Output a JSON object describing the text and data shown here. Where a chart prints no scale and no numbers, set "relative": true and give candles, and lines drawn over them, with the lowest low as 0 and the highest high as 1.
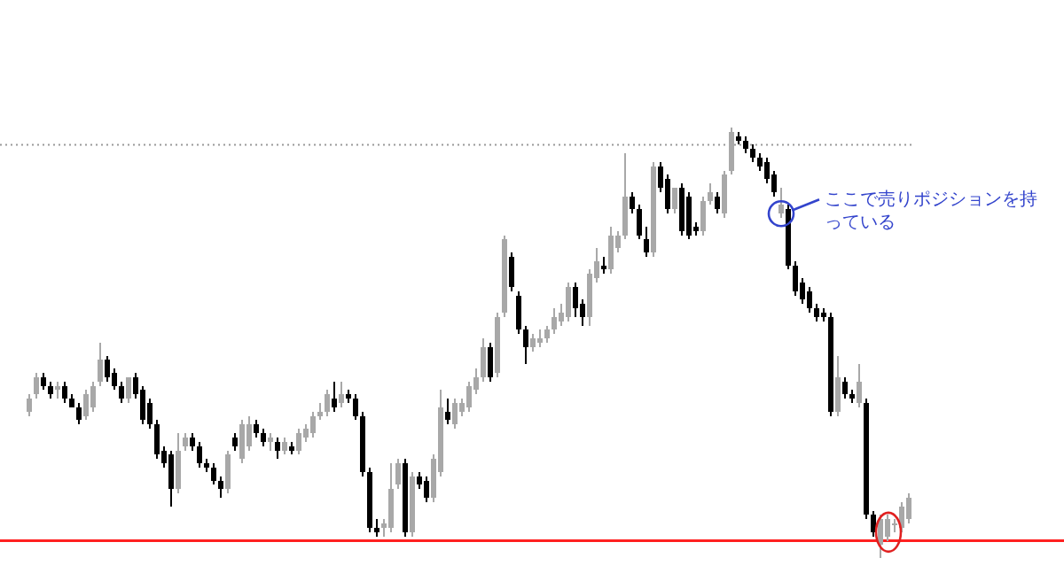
{
  "chart_data": {
    "type": "candlestick",
    "relative": true,
    "categories": [
      null,
      null,
      null,
      null,
      null,
      null,
      null,
      null,
      null,
      null,
      null,
      null,
      null,
      null,
      null,
      null,
      null,
      null,
      null,
      null,
      null,
      null,
      null,
      null,
      null,
      null,
      null,
      null,
      null,
      null,
      null,
      null,
      null,
      null,
      null,
      null,
      null,
      null,
      null,
      null,
      null,
      null,
      null,
      null,
      null,
      null,
      null,
      null,
      null,
      null,
      null,
      null,
      null,
      null,
      null,
      null,
      null,
      null,
      null,
      null,
      null,
      null,
      null,
      null,
      null,
      null,
      null,
      null,
      null,
      null,
      null,
      null,
      null,
      null,
      null,
      null,
      null,
      null,
      null,
      null,
      null,
      null,
      null,
      null,
      null,
      null,
      null,
      null,
      null,
      null,
      null,
      null,
      null,
      null,
      null,
      null,
      null,
      null,
      null,
      null,
      null,
      null,
      null,
      null,
      null,
      null,
      null,
      null,
      null,
      null,
      null,
      null,
      null,
      null,
      null,
      null,
      null,
      null,
      null,
      null,
      null,
      null,
      null,
      null,
      null
    ],
    "ohlc": [
      [
        0.34,
        0.38,
        0.33,
        0.37
      ],
      [
        0.38,
        0.43,
        0.37,
        0.42
      ],
      [
        0.42,
        0.43,
        0.39,
        0.4
      ],
      [
        0.4,
        0.41,
        0.37,
        0.38
      ],
      [
        0.39,
        0.41,
        0.37,
        0.4
      ],
      [
        0.4,
        0.41,
        0.36,
        0.37
      ],
      [
        0.37,
        0.38,
        0.35,
        0.35
      ],
      [
        0.35,
        0.36,
        0.31,
        0.32
      ],
      [
        0.33,
        0.39,
        0.32,
        0.38
      ],
      [
        0.35,
        0.41,
        0.34,
        0.4
      ],
      [
        0.41,
        0.5,
        0.4,
        0.46
      ],
      [
        0.46,
        0.47,
        0.41,
        0.42
      ],
      [
        0.43,
        0.44,
        0.39,
        0.4
      ],
      [
        0.4,
        0.41,
        0.36,
        0.37
      ],
      [
        0.37,
        0.42,
        0.36,
        0.42
      ],
      [
        0.42,
        0.43,
        0.37,
        0.38
      ],
      [
        0.39,
        0.4,
        0.31,
        0.32
      ],
      [
        0.36,
        0.37,
        0.3,
        0.31
      ],
      [
        0.31,
        0.32,
        0.23,
        0.24
      ],
      [
        0.25,
        0.26,
        0.21,
        0.22
      ],
      [
        0.24,
        0.25,
        0.12,
        0.16
      ],
      [
        0.16,
        0.29,
        0.15,
        0.25
      ],
      [
        0.26,
        0.29,
        0.25,
        0.28
      ],
      [
        0.28,
        0.29,
        0.25,
        0.26
      ],
      [
        0.26,
        0.27,
        0.21,
        0.22
      ],
      [
        0.22,
        0.23,
        0.2,
        0.21
      ],
      [
        0.21,
        0.22,
        0.17,
        0.18
      ],
      [
        0.18,
        0.19,
        0.14,
        0.16
      ],
      [
        0.16,
        0.25,
        0.15,
        0.24
      ],
      [
        0.28,
        0.29,
        0.25,
        0.26
      ],
      [
        0.23,
        0.32,
        0.22,
        0.31
      ],
      [
        0.26,
        0.33,
        0.25,
        0.31
      ],
      [
        0.31,
        0.32,
        0.28,
        0.29
      ],
      [
        0.29,
        0.3,
        0.26,
        0.27
      ],
      [
        0.27,
        0.29,
        0.25,
        0.28
      ],
      [
        0.27,
        0.28,
        0.23,
        0.25
      ],
      [
        0.25,
        0.28,
        0.24,
        0.27
      ],
      [
        0.26,
        0.27,
        0.24,
        0.25
      ],
      [
        0.25,
        0.3,
        0.24,
        0.29
      ],
      [
        0.28,
        0.31,
        0.27,
        0.3
      ],
      [
        0.29,
        0.34,
        0.28,
        0.33
      ],
      [
        0.33,
        0.36,
        0.32,
        0.34
      ],
      [
        0.34,
        0.39,
        0.33,
        0.38
      ],
      [
        0.37,
        0.41,
        0.34,
        0.35
      ],
      [
        0.36,
        0.41,
        0.35,
        0.38
      ],
      [
        0.38,
        0.39,
        0.36,
        0.37
      ],
      [
        0.37,
        0.38,
        0.32,
        0.33
      ],
      [
        0.33,
        0.34,
        0.19,
        0.2
      ],
      [
        0.2,
        0.21,
        0.06,
        0.07
      ],
      [
        0.07,
        0.09,
        0.05,
        0.06
      ],
      [
        0.07,
        0.09,
        0.05,
        0.08
      ],
      [
        0.07,
        0.22,
        0.06,
        0.16
      ],
      [
        0.17,
        0.23,
        0.16,
        0.22
      ],
      [
        0.22,
        0.23,
        0.05,
        0.06
      ],
      [
        0.06,
        0.2,
        0.05,
        0.19
      ],
      [
        0.19,
        0.2,
        0.16,
        0.17
      ],
      [
        0.18,
        0.19,
        0.13,
        0.14
      ],
      [
        0.14,
        0.24,
        0.13,
        0.23
      ],
      [
        0.2,
        0.39,
        0.19,
        0.35
      ],
      [
        0.34,
        0.37,
        0.31,
        0.32
      ],
      [
        0.31,
        0.37,
        0.3,
        0.36
      ],
      [
        0.34,
        0.37,
        0.33,
        0.36
      ],
      [
        0.35,
        0.41,
        0.34,
        0.4
      ],
      [
        0.39,
        0.44,
        0.38,
        0.42
      ],
      [
        0.42,
        0.51,
        0.41,
        0.49
      ],
      [
        0.49,
        0.5,
        0.41,
        0.42
      ],
      [
        0.43,
        0.57,
        0.42,
        0.56
      ],
      [
        0.57,
        0.75,
        0.56,
        0.74
      ],
      [
        0.7,
        0.71,
        0.62,
        0.63
      ],
      [
        0.61,
        0.62,
        0.52,
        0.53
      ],
      [
        0.53,
        0.54,
        0.45,
        0.49
      ],
      [
        0.49,
        0.52,
        0.48,
        0.51
      ],
      [
        0.5,
        0.53,
        0.49,
        0.51
      ],
      [
        0.51,
        0.54,
        0.5,
        0.53
      ],
      [
        0.53,
        0.58,
        0.52,
        0.56
      ],
      [
        0.55,
        0.59,
        0.54,
        0.57
      ],
      [
        0.56,
        0.64,
        0.55,
        0.63
      ],
      [
        0.63,
        0.64,
        0.56,
        0.58
      ],
      [
        0.59,
        0.6,
        0.54,
        0.56
      ],
      [
        0.56,
        0.67,
        0.54,
        0.66
      ],
      [
        0.65,
        0.72,
        0.64,
        0.69
      ],
      [
        0.68,
        0.7,
        0.66,
        0.67
      ],
      [
        0.67,
        0.77,
        0.66,
        0.75
      ],
      [
        0.72,
        0.76,
        0.71,
        0.75
      ],
      [
        0.75,
        0.94,
        0.74,
        0.84
      ],
      [
        0.84,
        0.85,
        0.8,
        0.81
      ],
      [
        0.81,
        0.82,
        0.74,
        0.75
      ],
      [
        0.74,
        0.77,
        0.7,
        0.71
      ],
      [
        0.71,
        0.92,
        0.7,
        0.91
      ],
      [
        0.91,
        0.92,
        0.85,
        0.86
      ],
      [
        0.88,
        0.89,
        0.8,
        0.81
      ],
      [
        0.81,
        0.86,
        0.8,
        0.86
      ],
      [
        0.86,
        0.87,
        0.75,
        0.76
      ],
      [
        0.84,
        0.85,
        0.74,
        0.75
      ],
      [
        0.77,
        0.78,
        0.75,
        0.76
      ],
      [
        0.76,
        0.84,
        0.75,
        0.83
      ],
      [
        0.83,
        0.87,
        0.82,
        0.85
      ],
      [
        0.84,
        0.85,
        0.8,
        0.81
      ],
      [
        0.8,
        0.9,
        0.79,
        0.89
      ],
      [
        0.9,
        1.0,
        0.89,
        0.99
      ],
      [
        0.98,
        0.99,
        0.96,
        0.97
      ],
      [
        0.97,
        0.98,
        0.94,
        0.95
      ],
      [
        0.95,
        0.96,
        0.92,
        0.93
      ],
      [
        0.93,
        0.94,
        0.9,
        0.91
      ],
      [
        0.92,
        0.93,
        0.87,
        0.88
      ],
      [
        0.89,
        0.9,
        0.84,
        0.85
      ],
      [
        0.8,
        0.86,
        0.79,
        0.82
      ],
      [
        0.81,
        0.82,
        0.67,
        0.68
      ],
      [
        0.68,
        0.69,
        0.61,
        0.62
      ],
      [
        0.64,
        0.65,
        0.59,
        0.6
      ],
      [
        0.62,
        0.63,
        0.57,
        0.58
      ],
      [
        0.58,
        0.59,
        0.55,
        0.56
      ],
      [
        0.57,
        0.58,
        0.55,
        0.56
      ],
      [
        0.56,
        0.57,
        0.33,
        0.34
      ],
      [
        0.34,
        0.47,
        0.33,
        0.42
      ],
      [
        0.41,
        0.42,
        0.37,
        0.38
      ],
      [
        0.38,
        0.39,
        0.36,
        0.37
      ],
      [
        0.36,
        0.45,
        0.35,
        0.41
      ],
      [
        0.36,
        0.37,
        0.09,
        0.1
      ],
      [
        0.1,
        0.11,
        0.05,
        0.06
      ],
      [
        0.03,
        0.1,
        0.0,
        0.09
      ],
      [
        0.05,
        0.1,
        0.04,
        0.09
      ],
      [
        0.08,
        0.09,
        0.06,
        0.08
      ],
      [
        0.07,
        0.13,
        0.06,
        0.12
      ],
      [
        0.09,
        0.15,
        0.08,
        0.14
      ]
    ],
    "ref_lines": [
      {
        "axis": "y",
        "value": 0.04,
        "color": "#ff2020",
        "line_style": "solid"
      },
      {
        "axis": "y",
        "value": 0.96,
        "color": "#999999",
        "line_style": "dotted"
      }
    ],
    "annotations": [
      "ここで売りポジションを持っている"
    ]
  }
}
